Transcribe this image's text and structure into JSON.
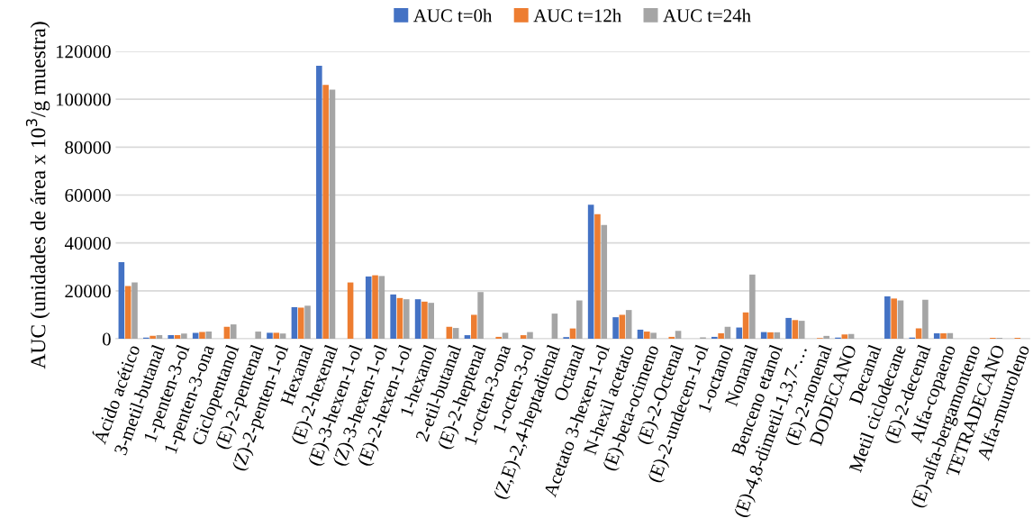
{
  "chart_data": {
    "type": "bar",
    "ylabel": "AUC (unidades de área x 10$^{3}$/g muestra)",
    "categories": [
      "Ácido acético",
      "3-metil-butanal",
      "1-penten-3-ol",
      "1-penten-3-ona",
      "Ciclopentanol",
      "(E)-2-pentenal",
      "(Z)-2-penten-1-ol",
      "Hexanal",
      "(E)-2-hexenal",
      "(E)-3-hexen-1-ol",
      "(Z)-3-hexen-1-ol",
      "(E)-2-hexen-1-ol",
      "1-hexanol",
      "2-etil-butanal",
      "(E)-2-heptenal",
      "1-octen-3-ona",
      "1-octen-3-ol",
      "(Z,E)-2,4-heptadienal",
      "Octanal",
      "Acetato 3-hexen-1-ol",
      "N-hexil acetato",
      "(E)-beta-ocimeno",
      "(E)-2-Octenal",
      "(E)-2-undecen-1-ol",
      "1-octanol",
      "Nonanal",
      "Benceno etanol",
      "(E)-4,8-dimetil-1,3,7-…",
      "(E)-2-nonenal",
      "DODECANO",
      "Decanal",
      "Metil ciclodecane",
      "(E)-2-decenal",
      "Alfa-copaeno",
      "(E)-alfa-bergamonteno",
      "TETRADECANO",
      "Alfa-muuroleno"
    ],
    "series": [
      {
        "name": "AUC t=0h",
        "color": "#4472c4",
        "values": [
          32000,
          500,
          1500,
          2500,
          0,
          0,
          2500,
          13200,
          114000,
          0,
          26000,
          18500,
          16500,
          0,
          1500,
          0,
          null,
          0,
          700,
          56000,
          9000,
          3800,
          0,
          0,
          800,
          4700,
          2800,
          8700,
          0,
          500,
          0,
          17700,
          500,
          2300,
          null,
          0,
          0
        ]
      },
      {
        "name": "AUC t=12h",
        "color": "#ed7d31",
        "values": [
          22000,
          1200,
          1500,
          2800,
          5000,
          0,
          2500,
          13000,
          106000,
          23500,
          26500,
          17000,
          15500,
          5000,
          10000,
          800,
          1500,
          0,
          4300,
          52000,
          10000,
          3000,
          800,
          0,
          2300,
          11000,
          2700,
          7800,
          300,
          1800,
          0,
          16800,
          4300,
          2300,
          null,
          400,
          400
        ]
      },
      {
        "name": "AUC t=24h",
        "color": "#a5a5a5",
        "values": [
          23500,
          1500,
          2200,
          3000,
          6000,
          3000,
          2200,
          13800,
          104000,
          0,
          26200,
          16500,
          15000,
          4500,
          19500,
          2500,
          2800,
          10500,
          16000,
          47500,
          12000,
          2500,
          3300,
          600,
          5000,
          26800,
          2700,
          7500,
          1200,
          2000,
          0,
          16000,
          16300,
          2400,
          null,
          400,
          0
        ]
      }
    ],
    "ylim": [
      0,
      120000
    ],
    "yticks": [
      0,
      20000,
      40000,
      60000,
      80000,
      100000,
      120000
    ],
    "grid": "y",
    "legend": "top"
  }
}
